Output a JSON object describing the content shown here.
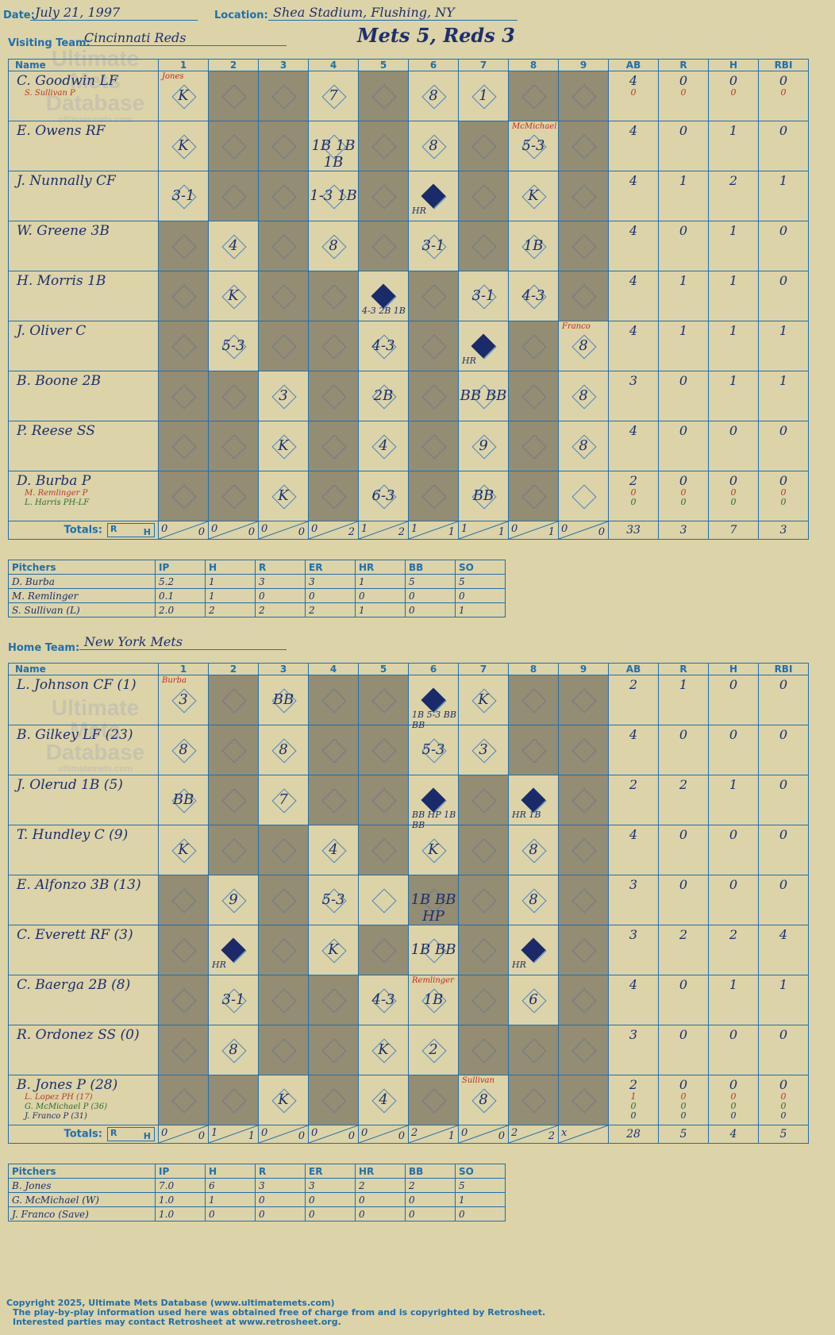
{
  "header": {
    "date_label": "Date:",
    "date": "July 21, 1997",
    "location_label": "Location:",
    "location": "Shea Stadium, Flushing, NY",
    "visiting_label": "Visiting Team:",
    "visiting_team": "Cincinnati Reds",
    "score_title": "Mets 5, Reds 3",
    "home_label": "Home Team:",
    "home_team": "New York Mets"
  },
  "columns": {
    "name": "Name",
    "innings": [
      "1",
      "2",
      "3",
      "4",
      "5",
      "6",
      "7",
      "8",
      "9"
    ],
    "stats": [
      "AB",
      "R",
      "H",
      "RBI"
    ]
  },
  "watermark": {
    "line1": "Ultimate",
    "line2": "Mets",
    "line3": "Database",
    "url": "ultimatemets.com"
  },
  "visitors": {
    "players": [
      {
        "name": "C. Goodwin LF",
        "subs": [
          {
            "text": "S. Sullivan P",
            "color": "red"
          }
        ],
        "ab": "4",
        "r": "0",
        "h": "0",
        "rbi": "0",
        "sub_stats": [
          {
            "ab": "0",
            "r": "0",
            "h": "0",
            "rbi": "0",
            "color": "red"
          }
        ],
        "cells": [
          {
            "i": 1,
            "t": "K",
            "note": "Jones"
          },
          {
            "i": 4,
            "t": "7"
          },
          {
            "i": 6,
            "t": "8"
          },
          {
            "i": 7,
            "t": "1"
          }
        ]
      },
      {
        "name": "E. Owens RF",
        "subs": [],
        "ab": "4",
        "r": "0",
        "h": "1",
        "rbi": "0",
        "sub_stats": [],
        "cells": [
          {
            "i": 1,
            "t": "K"
          },
          {
            "i": 4,
            "t": "1B 1B 1B"
          },
          {
            "i": 6,
            "t": "8"
          },
          {
            "i": 8,
            "t": "5-3",
            "note": "McMichael"
          }
        ]
      },
      {
        "name": "J. Nunnally CF",
        "subs": [],
        "ab": "4",
        "r": "1",
        "h": "2",
        "rbi": "1",
        "sub_stats": [],
        "cells": [
          {
            "i": 1,
            "t": "3-1"
          },
          {
            "i": 4,
            "t": "1-3 1B"
          },
          {
            "i": 6,
            "t": "HR",
            "run": true
          },
          {
            "i": 8,
            "t": "K"
          }
        ]
      },
      {
        "name": "W. Greene 3B",
        "subs": [],
        "ab": "4",
        "r": "0",
        "h": "1",
        "rbi": "0",
        "sub_stats": [],
        "cells": [
          {
            "i": 2,
            "t": "4"
          },
          {
            "i": 4,
            "t": "8"
          },
          {
            "i": 6,
            "t": "3-1"
          },
          {
            "i": 8,
            "t": "1B"
          }
        ]
      },
      {
        "name": "H. Morris 1B",
        "subs": [],
        "ab": "4",
        "r": "1",
        "h": "1",
        "rbi": "0",
        "sub_stats": [],
        "cells": [
          {
            "i": 2,
            "t": "K"
          },
          {
            "i": 5,
            "t": "4-3 2B 1B",
            "run": true
          },
          {
            "i": 7,
            "t": "3-1"
          },
          {
            "i": 8,
            "t": "4-3"
          }
        ]
      },
      {
        "name": "J. Oliver C",
        "subs": [],
        "ab": "4",
        "r": "1",
        "h": "1",
        "rbi": "1",
        "sub_stats": [],
        "cells": [
          {
            "i": 2,
            "t": "5-3"
          },
          {
            "i": 5,
            "t": "4-3"
          },
          {
            "i": 7,
            "t": "HR",
            "run": true
          },
          {
            "i": 9,
            "t": "8",
            "note": "Franco"
          }
        ]
      },
      {
        "name": "B. Boone 2B",
        "subs": [],
        "ab": "3",
        "r": "0",
        "h": "1",
        "rbi": "1",
        "sub_stats": [],
        "cells": [
          {
            "i": 3,
            "t": "3"
          },
          {
            "i": 5,
            "t": "2B"
          },
          {
            "i": 7,
            "t": "BB BB"
          },
          {
            "i": 9,
            "t": "8"
          }
        ]
      },
      {
        "name": "P. Reese SS",
        "subs": [],
        "ab": "4",
        "r": "0",
        "h": "0",
        "rbi": "0",
        "sub_stats": [],
        "cells": [
          {
            "i": 3,
            "t": "K"
          },
          {
            "i": 5,
            "t": "4"
          },
          {
            "i": 7,
            "t": "9"
          },
          {
            "i": 9,
            "t": "8"
          }
        ]
      },
      {
        "name": "D. Burba P",
        "subs": [
          {
            "text": "M. Remlinger P",
            "color": "red"
          },
          {
            "text": "L. Harris PH-LF",
            "color": "green"
          }
        ],
        "ab": "2",
        "r": "0",
        "h": "0",
        "rbi": "0",
        "sub_stats": [
          {
            "ab": "0",
            "r": "0",
            "h": "0",
            "rbi": "0",
            "color": "red"
          },
          {
            "ab": "0",
            "r": "0",
            "h": "0",
            "rbi": "0",
            "color": "green"
          }
        ],
        "cells": [
          {
            "i": 3,
            "t": "K"
          },
          {
            "i": 5,
            "t": "6-3"
          },
          {
            "i": 7,
            "t": "BB"
          }
        ]
      }
    ],
    "shade": [
      [
        2,
        3,
        5,
        8,
        9
      ],
      [
        2,
        3,
        5,
        7,
        9
      ],
      [
        2,
        3,
        5,
        7,
        9
      ],
      [
        1,
        3,
        5,
        7,
        9
      ],
      [
        1,
        3,
        4,
        6,
        9
      ],
      [
        1,
        3,
        4,
        6,
        8
      ],
      [
        1,
        2,
        4,
        6,
        8
      ],
      [
        1,
        2,
        4,
        6,
        8
      ],
      [
        1,
        2,
        4,
        6,
        8
      ]
    ],
    "totals": {
      "label": "Totals:",
      "r_label": "R",
      "h_label": "H",
      "innings": [
        [
          "0",
          "0"
        ],
        [
          "0",
          "0"
        ],
        [
          "0",
          "0"
        ],
        [
          "0",
          "2"
        ],
        [
          "1",
          "2"
        ],
        [
          "1",
          "1"
        ],
        [
          "1",
          "1"
        ],
        [
          "0",
          "1"
        ],
        [
          "0",
          "0"
        ]
      ],
      "ab": "33",
      "r": "3",
      "h": "7",
      "rbi": "3"
    },
    "pitchers": {
      "headers": [
        "Pitchers",
        "IP",
        "H",
        "R",
        "ER",
        "HR",
        "BB",
        "SO"
      ],
      "rows": [
        [
          "D. Burba",
          "5.2",
          "1",
          "3",
          "3",
          "1",
          "5",
          "5"
        ],
        [
          "M. Remlinger",
          "0.1",
          "1",
          "0",
          "0",
          "0",
          "0",
          "0"
        ],
        [
          "S. Sullivan (L)",
          "2.0",
          "2",
          "2",
          "2",
          "1",
          "0",
          "1"
        ]
      ]
    }
  },
  "home": {
    "players": [
      {
        "name": "L. Johnson CF (1)",
        "subs": [],
        "ab": "2",
        "r": "1",
        "h": "0",
        "rbi": "0",
        "sub_stats": [],
        "cells": [
          {
            "i": 1,
            "t": "3",
            "note": "Burba"
          },
          {
            "i": 3,
            "t": "BB"
          },
          {
            "i": 6,
            "t": "1B 5-3 BB BB",
            "run": true
          },
          {
            "i": 7,
            "t": "K"
          }
        ]
      },
      {
        "name": "B. Gilkey LF (23)",
        "subs": [],
        "ab": "4",
        "r": "0",
        "h": "0",
        "rbi": "0",
        "sub_stats": [],
        "cells": [
          {
            "i": 1,
            "t": "8"
          },
          {
            "i": 3,
            "t": "8"
          },
          {
            "i": 6,
            "t": "5-3"
          },
          {
            "i": 7,
            "t": "3"
          }
        ]
      },
      {
        "name": "J. Olerud 1B (5)",
        "subs": [],
        "ab": "2",
        "r": "2",
        "h": "1",
        "rbi": "0",
        "sub_stats": [],
        "cells": [
          {
            "i": 1,
            "t": "BB"
          },
          {
            "i": 3,
            "t": "7"
          },
          {
            "i": 6,
            "t": "BB HP 1B BB",
            "run": true
          },
          {
            "i": 8,
            "t": "HR 1B",
            "run": true
          }
        ]
      },
      {
        "name": "T. Hundley C (9)",
        "subs": [],
        "ab": "4",
        "r": "0",
        "h": "0",
        "rbi": "0",
        "sub_stats": [],
        "cells": [
          {
            "i": 1,
            "t": "K"
          },
          {
            "i": 4,
            "t": "4"
          },
          {
            "i": 6,
            "t": "K"
          },
          {
            "i": 8,
            "t": "8"
          }
        ]
      },
      {
        "name": "E. Alfonzo 3B (13)",
        "subs": [],
        "ab": "3",
        "r": "0",
        "h": "0",
        "rbi": "0",
        "sub_stats": [],
        "cells": [
          {
            "i": 2,
            "t": "9"
          },
          {
            "i": 4,
            "t": "5-3"
          },
          {
            "i": 6,
            "t": "1B BB HP"
          },
          {
            "i": 8,
            "t": "8"
          }
        ]
      },
      {
        "name": "C. Everett RF (3)",
        "subs": [],
        "ab": "3",
        "r": "2",
        "h": "2",
        "rbi": "4",
        "sub_stats": [],
        "cells": [
          {
            "i": 2,
            "t": "HR",
            "run": true
          },
          {
            "i": 4,
            "t": "K"
          },
          {
            "i": 6,
            "t": "1B BB"
          },
          {
            "i": 8,
            "t": "HR",
            "run": true
          }
        ]
      },
      {
        "name": "C. Baerga 2B (8)",
        "subs": [],
        "ab": "4",
        "r": "0",
        "h": "1",
        "rbi": "1",
        "sub_stats": [],
        "cells": [
          {
            "i": 2,
            "t": "3-1"
          },
          {
            "i": 5,
            "t": "4-3"
          },
          {
            "i": 6,
            "t": "1B",
            "note": "Remlinger"
          },
          {
            "i": 8,
            "t": "6"
          }
        ]
      },
      {
        "name": "R. Ordonez SS (0)",
        "subs": [],
        "ab": "3",
        "r": "0",
        "h": "0",
        "rbi": "0",
        "sub_stats": [],
        "cells": [
          {
            "i": 2,
            "t": "8"
          },
          {
            "i": 5,
            "t": "K"
          },
          {
            "i": 6,
            "t": "2"
          }
        ]
      },
      {
        "name": "B. Jones P (28)",
        "subs": [
          {
            "text": "L. Lopez PH (17)",
            "color": "red"
          },
          {
            "text": "G. McMichael P (36)",
            "color": "green"
          },
          {
            "text": "J. Franco P (31)",
            "color": "blue"
          }
        ],
        "ab": "2",
        "r": "0",
        "h": "0",
        "rbi": "0",
        "sub_stats": [
          {
            "ab": "1",
            "r": "0",
            "h": "0",
            "rbi": "0",
            "color": "red"
          },
          {
            "ab": "0",
            "r": "0",
            "h": "0",
            "rbi": "0",
            "color": "green"
          },
          {
            "ab": "0",
            "r": "0",
            "h": "0",
            "rbi": "0",
            "color": "blue"
          }
        ],
        "cells": [
          {
            "i": 3,
            "t": "K"
          },
          {
            "i": 5,
            "t": "4"
          },
          {
            "i": 7,
            "t": "8",
            "note": "Sullivan"
          }
        ]
      }
    ],
    "shade": [
      [
        2,
        4,
        5,
        8,
        9
      ],
      [
        2,
        4,
        5,
        8,
        9
      ],
      [
        2,
        4,
        5,
        7,
        9
      ],
      [
        2,
        3,
        5,
        7,
        9
      ],
      [
        1,
        3,
        6,
        7,
        9
      ],
      [
        1,
        3,
        5,
        7,
        9
      ],
      [
        1,
        3,
        4,
        7,
        9
      ],
      [
        1,
        3,
        4,
        7,
        8,
        9
      ],
      [
        1,
        2,
        4,
        6,
        8,
        9
      ]
    ],
    "totals": {
      "label": "Totals:",
      "r_label": "R",
      "h_label": "H",
      "innings": [
        [
          "0",
          "0"
        ],
        [
          "1",
          "1"
        ],
        [
          "0",
          "0"
        ],
        [
          "0",
          "0"
        ],
        [
          "0",
          "0"
        ],
        [
          "2",
          "1"
        ],
        [
          "0",
          "0"
        ],
        [
          "2",
          "2"
        ],
        [
          "x",
          ""
        ]
      ],
      "ab": "28",
      "r": "5",
      "h": "4",
      "rbi": "5"
    },
    "pitchers": {
      "headers": [
        "Pitchers",
        "IP",
        "H",
        "R",
        "ER",
        "HR",
        "BB",
        "SO"
      ],
      "rows": [
        [
          "B. Jones",
          "7.0",
          "6",
          "3",
          "3",
          "2",
          "2",
          "5"
        ],
        [
          "G. McMichael (W)",
          "1.0",
          "1",
          "0",
          "0",
          "0",
          "0",
          "1"
        ],
        [
          "J. Franco (Save)",
          "1.0",
          "0",
          "0",
          "0",
          "0",
          "0",
          "0"
        ]
      ]
    }
  },
  "footer": {
    "line1": "Copyright 2025, Ultimate Mets Database (www.ultimatemets.com)",
    "line2": "The play-by-play information used here was obtained free of charge from and is copyrighted by Retrosheet.",
    "line3": "Interested parties may contact Retrosheet at www.retrosheet.org."
  }
}
